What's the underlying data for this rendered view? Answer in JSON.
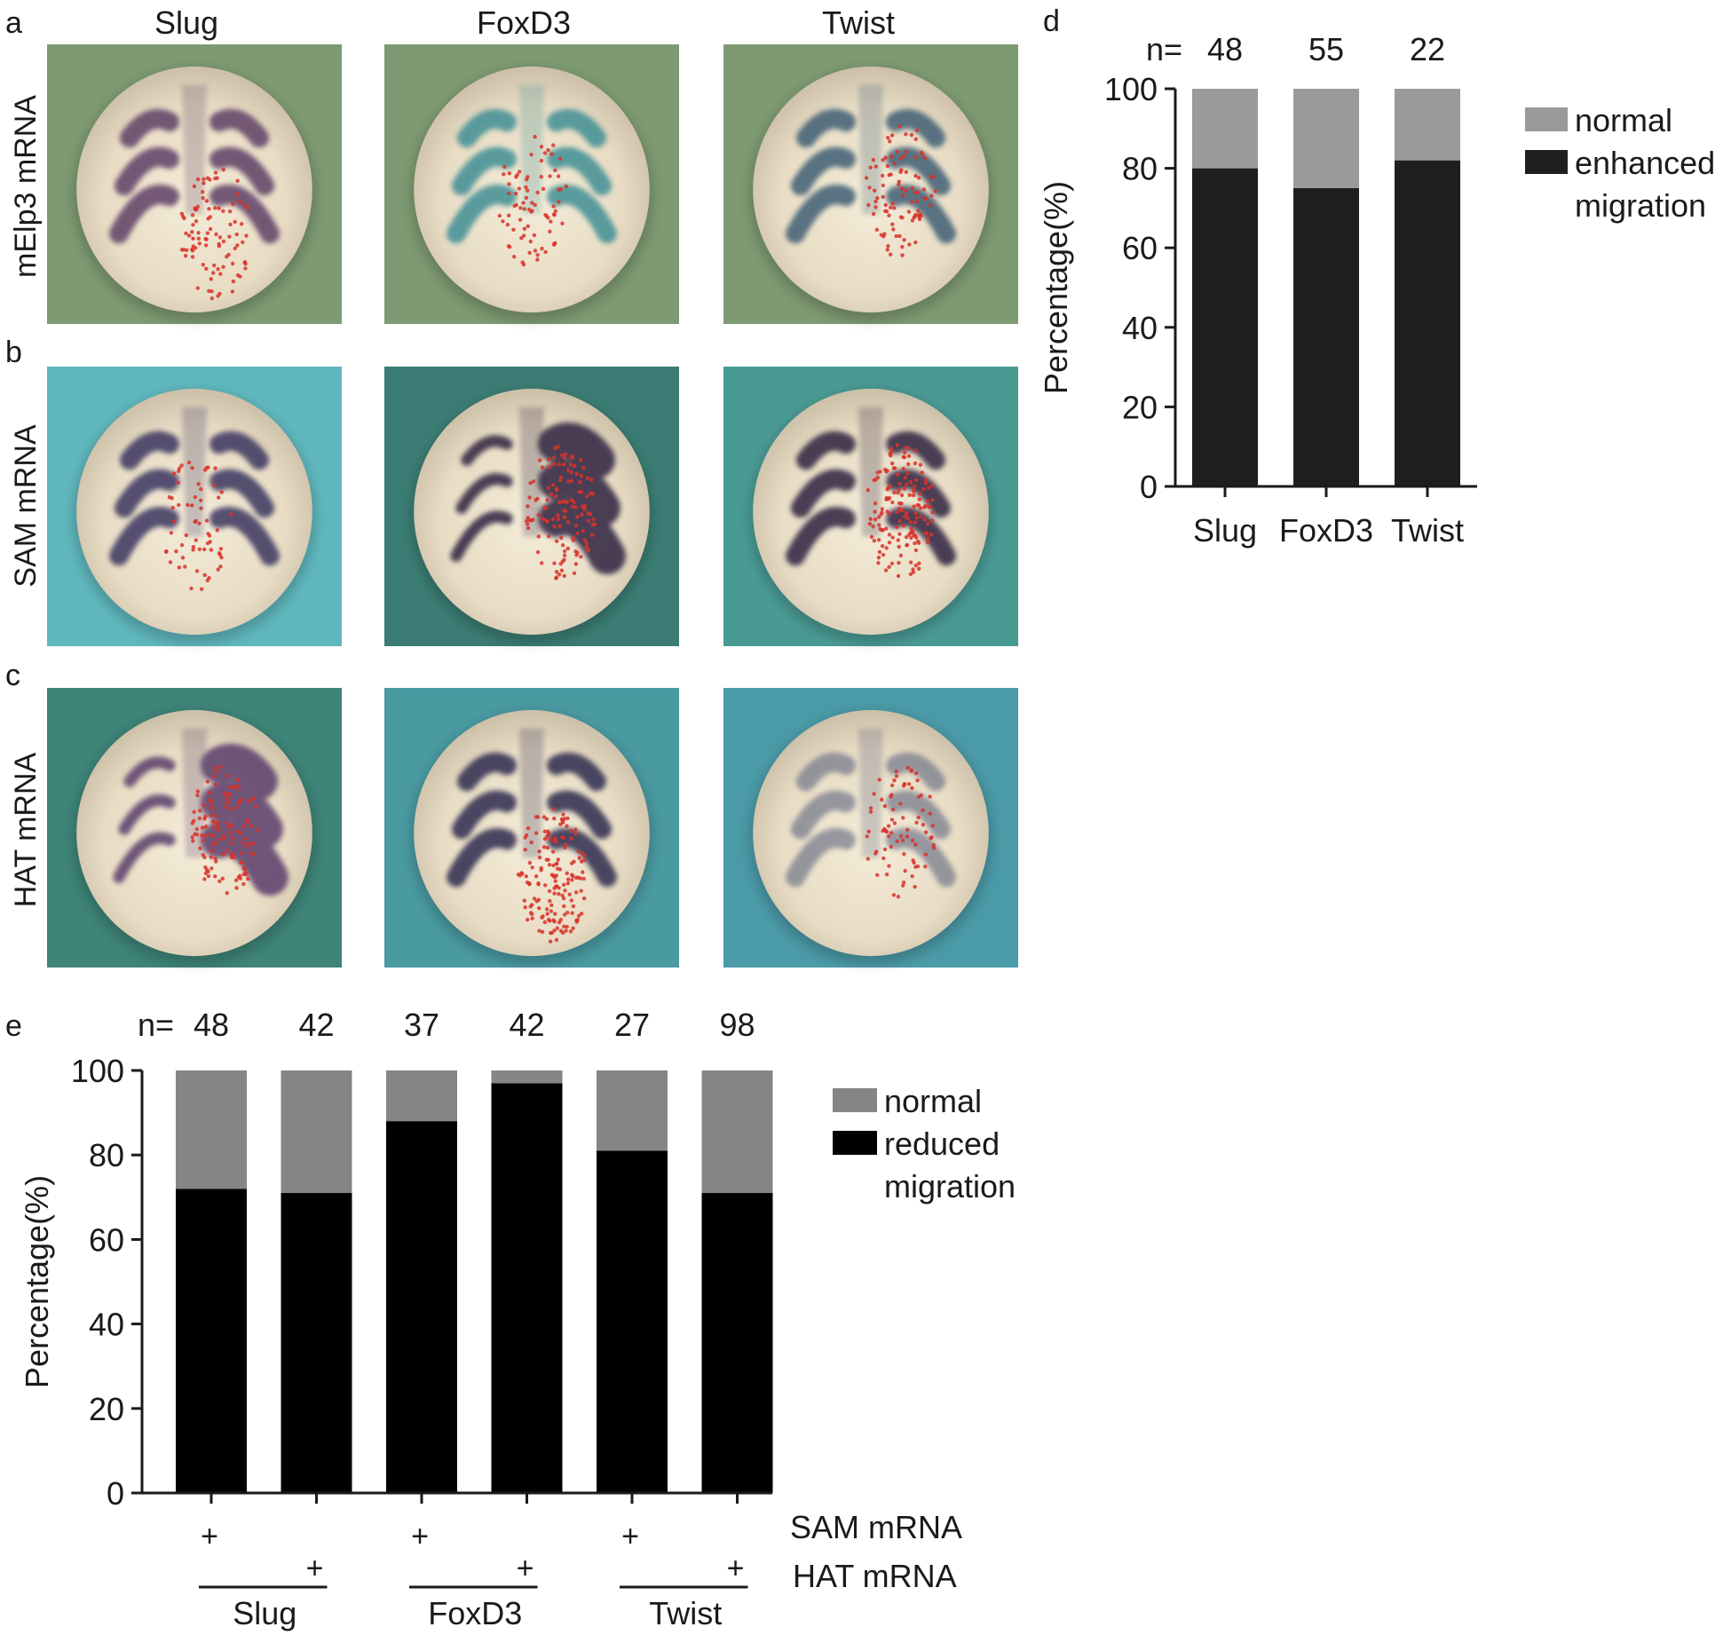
{
  "panel_letters": [
    "a",
    "b",
    "c",
    "d",
    "e"
  ],
  "column_headers": [
    "Slug",
    "FoxD3",
    "Twist"
  ],
  "row_labels": [
    "mElp3 mRNA",
    "SAM mRNA",
    "HAT mRNA"
  ],
  "embryos": [
    {
      "row": 0,
      "col": 0,
      "bg": "#7e9a72",
      "stain": "#5e3f66",
      "pattern": "bilateral",
      "side": "bottom-right",
      "density": 0.6
    },
    {
      "row": 0,
      "col": 1,
      "bg": "#7e9a72",
      "stain": "#3f8f95",
      "pattern": "bilateral",
      "side": "center",
      "density": 0.5
    },
    {
      "row": 0,
      "col": 2,
      "bg": "#7e9a72",
      "stain": "#3f5f75",
      "pattern": "bilateral",
      "side": "right",
      "density": 0.6
    },
    {
      "row": 1,
      "col": 0,
      "bg": "#5fb7bd",
      "stain": "#3a3560",
      "pattern": "bilateral",
      "side": "center",
      "density": 0.4
    },
    {
      "row": 1,
      "col": 1,
      "bg": "#3b7d74",
      "stain": "#2e2340",
      "pattern": "right-heavy",
      "side": "right",
      "density": 0.8
    },
    {
      "row": 1,
      "col": 2,
      "bg": "#4a9a94",
      "stain": "#2e2340",
      "pattern": "bilateral",
      "side": "right",
      "density": 1.0
    },
    {
      "row": 2,
      "col": 0,
      "bg": "#3e8478",
      "stain": "#5a3d6a",
      "pattern": "right-heavy",
      "side": "right",
      "density": 0.8
    },
    {
      "row": 2,
      "col": 1,
      "bg": "#4a9aa2",
      "stain": "#2e2a4f",
      "pattern": "bilateral",
      "side": "bottom-right",
      "density": 1.0
    },
    {
      "row": 2,
      "col": 2,
      "bg": "#4b9aa8",
      "stain": "#505878",
      "pattern": "bilateral-faint",
      "side": "right",
      "density": 0.5
    }
  ],
  "chart_data": [
    {
      "panel": "d",
      "type": "bar",
      "stacked": true,
      "categories": [
        "Slug",
        "FoxD3",
        "Twist"
      ],
      "n_prefix": "n=",
      "n_values": [
        "48",
        "55",
        "22"
      ],
      "ylabel": "Percentage(%)",
      "ylim": [
        0,
        100
      ],
      "yticks": [
        "0",
        "20",
        "40",
        "60",
        "80",
        "100"
      ],
      "series": [
        {
          "name": "enhanced migration",
          "values": [
            80,
            75,
            82
          ],
          "color": "#1e1e1e"
        },
        {
          "name": "normal",
          "values": [
            20,
            25,
            18
          ],
          "color": "#9a9a9a"
        }
      ],
      "legend": [
        {
          "label": "normal",
          "color": "#9a9a9a"
        },
        {
          "label": "enhanced",
          "color": "#1e1e1e"
        },
        {
          "label": "migration",
          "color": null
        }
      ],
      "legend_position": "top-right",
      "grid": false
    },
    {
      "panel": "e",
      "type": "bar",
      "stacked": true,
      "categories": [
        "Slug SAM",
        "Slug HAT",
        "FoxD3 SAM",
        "FoxD3 HAT",
        "Twist SAM",
        "Twist HAT"
      ],
      "n_prefix": "n=",
      "n_values": [
        "48",
        "42",
        "37",
        "42",
        "27",
        "98"
      ],
      "ylabel": "Percentage(%)",
      "ylim": [
        0,
        100
      ],
      "yticks": [
        "0",
        "20",
        "40",
        "60",
        "80",
        "100"
      ],
      "series": [
        {
          "name": "reduced migration",
          "values": [
            72,
            71,
            88,
            97,
            81,
            71
          ],
          "color": "#000000"
        },
        {
          "name": "normal",
          "values": [
            28,
            29,
            12,
            3,
            19,
            29
          ],
          "color": "#858585"
        }
      ],
      "legend": [
        {
          "label": "normal",
          "color": "#858585"
        },
        {
          "label": "reduced",
          "color": "#000000"
        },
        {
          "label": "migration",
          "color": null
        }
      ],
      "legend_position": "top-right",
      "grid": false,
      "row_labels": [
        "SAM mRNA",
        "HAT mRNA"
      ],
      "plus_sign": "+",
      "sam_marks": [
        "+",
        "",
        "+",
        "",
        "+",
        ""
      ],
      "hat_marks": [
        "",
        "+",
        "",
        "+",
        "",
        "+"
      ],
      "groups": [
        "Slug",
        "FoxD3",
        "Twist"
      ]
    }
  ]
}
